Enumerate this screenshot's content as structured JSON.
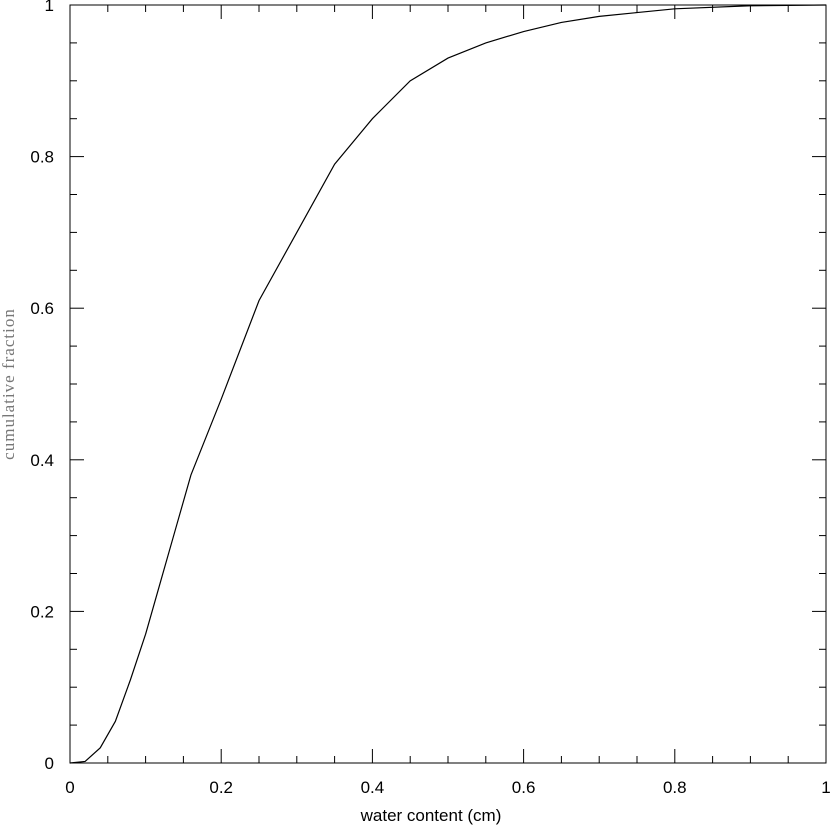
{
  "chart_data": {
    "type": "line",
    "xlabel": "water content (cm)",
    "ylabel": "cumulative fraction",
    "x": [
      0,
      0.02,
      0.04,
      0.06,
      0.08,
      0.1,
      0.12,
      0.14,
      0.16,
      0.18,
      0.2,
      0.25,
      0.3,
      0.35,
      0.4,
      0.45,
      0.5,
      0.55,
      0.6,
      0.65,
      0.7,
      0.75,
      0.8,
      0.9,
      1
    ],
    "series": [
      {
        "color": "#000000",
        "values": [
          0,
          0.002,
          0.02,
          0.055,
          0.11,
          0.17,
          0.24,
          0.31,
          0.38,
          0.43,
          0.48,
          0.61,
          0.7,
          0.79,
          0.85,
          0.9,
          0.93,
          0.95,
          0.965,
          0.977,
          0.985,
          0.99,
          0.995,
          0.999,
          1
        ]
      }
    ],
    "xlim": [
      0,
      1
    ],
    "ylim": [
      0,
      1
    ],
    "xticks": [
      0,
      0.2,
      0.4,
      0.6,
      0.8,
      1
    ],
    "yticks": [
      0,
      0.2,
      0.4,
      0.6,
      0.8,
      1
    ],
    "xticks_minor": [
      0.05,
      0.1,
      0.15,
      0.25,
      0.3,
      0.35,
      0.45,
      0.5,
      0.55,
      0.65,
      0.7,
      0.75,
      0.85,
      0.9,
      0.95
    ],
    "yticks_minor": [
      0.05,
      0.1,
      0.15,
      0.25,
      0.3,
      0.35,
      0.45,
      0.5,
      0.55,
      0.65,
      0.7,
      0.75,
      0.85,
      0.9,
      0.95
    ]
  }
}
